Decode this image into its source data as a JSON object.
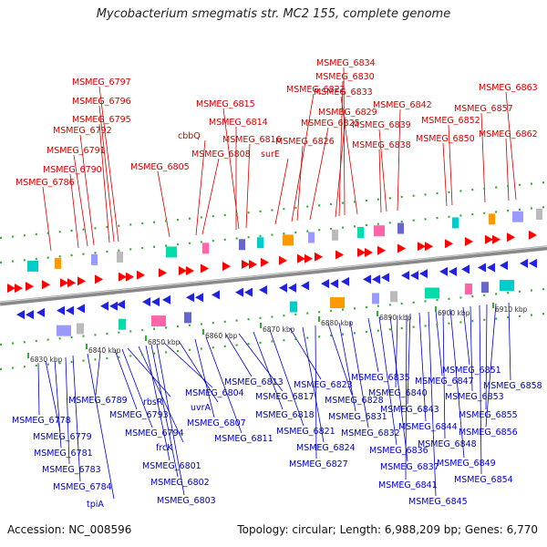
{
  "title": "Mycobacterium smegmatis str. MC2 155, complete genome",
  "footer": {
    "accession": "Accession: NC_008596",
    "topology": "Topology: circular; Length: 6,988,209 bp; Genes: 6,770"
  },
  "colors": {
    "top_labels": "#cc0000",
    "bottom_labels": "#0000bb",
    "backbone": "#888888",
    "tick_green": "#22aa22",
    "forward_arrow": "#ff0000",
    "reverse_arrow": "#2222dd"
  },
  "scale_labels": [
    "6830 kbp",
    "6840 kbp",
    "6850 kbp",
    "6860 kbp",
    "6870 kbp",
    "6880 kbp",
    "6890 kbp",
    "6900 kbp",
    "6910 kbp"
  ],
  "top_genes": [
    "MSMEG_6786",
    "MSMEG_6790",
    "MSMEG_6791",
    "MSMEG_6792",
    "MSMEG_6795",
    "MSMEG_6796",
    "MSMEG_6797",
    "MSMEG_6805",
    "cbbQ",
    "MSMEG_6808",
    "MSMEG_6814",
    "MSMEG_6815",
    "MSMEG_6816",
    "surE",
    "MSMEG_6822",
    "MSMEG_6826",
    "MSMEG_6825",
    "MSMEG_6829",
    "MSMEG_6830",
    "MSMEG_6834",
    "MSMEG_6833",
    "MSMEG_6838",
    "MSMEG_6839",
    "MSMEG_6842",
    "MSMEG_6850",
    "MSMEG_6852",
    "MSMEG_6857",
    "MSMEG_6862",
    "MSMEG_6863"
  ],
  "bottom_genes": [
    "MSMEG_6778",
    "MSMEG_6779",
    "MSMEG_6781",
    "MSMEG_6783",
    "MSMEG_6784",
    "tpiA",
    "MSMEG_6789",
    "MSMEG_6793",
    "MSMEG_6794",
    "rbsR",
    "frcK",
    "MSMEG_6801",
    "MSMEG_6802",
    "MSMEG_6803",
    "MSMEG_6804",
    "uvrA",
    "MSMEG_6807",
    "MSMEG_6811",
    "MSMEG_6813",
    "MSMEG_6817",
    "MSMEG_6818",
    "MSMEG_6821",
    "MSMEG_6823",
    "MSMEG_6824",
    "MSMEG_6827",
    "MSMEG_6828",
    "MSMEG_6831",
    "MSMEG_6832",
    "MSMEG_6835",
    "MSMEG_6836",
    "MSMEG_6837",
    "MSMEG_6840",
    "MSMEG_6841",
    "MSMEG_6843",
    "MSMEG_6844",
    "MSMEG_6845",
    "MSMEG_6847",
    "MSMEG_6848",
    "MSMEG_6849",
    "MSMEG_6851",
    "MSMEG_6853",
    "MSMEG_6854",
    "MSMEG_6855",
    "MSMEG_6856",
    "MSMEG_6858"
  ]
}
